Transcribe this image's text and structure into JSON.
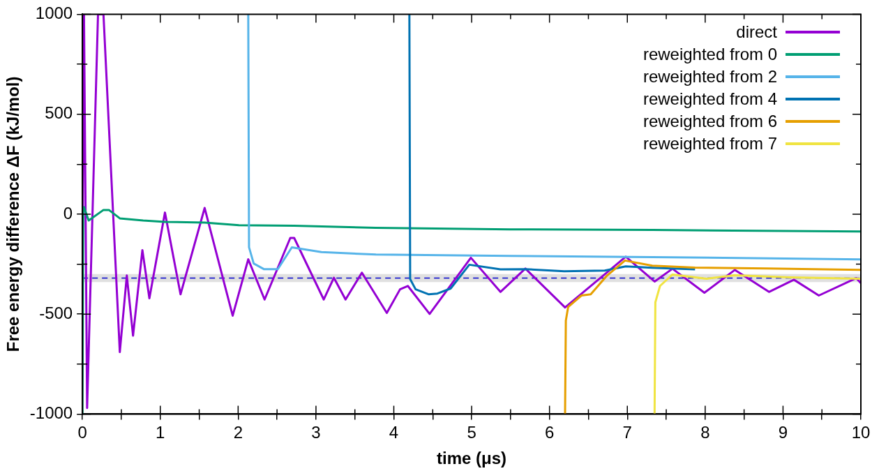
{
  "chart_data": {
    "type": "line",
    "xlabel": "time (μs)",
    "ylabel": "Free energy difference ΔF (kJ/mol)",
    "xlim": [
      0,
      10
    ],
    "ylim": [
      -1000,
      1000
    ],
    "xticks": [
      0,
      {
        "value": 0.5,
        "label": null
      },
      1,
      {
        "value": 1.5,
        "label": null
      },
      2,
      {
        "value": 2.5,
        "label": null
      },
      3,
      {
        "value": 3.5,
        "label": null
      },
      4,
      {
        "value": 4.5,
        "label": null
      },
      5,
      {
        "value": 5.5,
        "label": null
      },
      6,
      {
        "value": 6.5,
        "label": null
      },
      7,
      {
        "value": 7.5,
        "label": null
      },
      8,
      {
        "value": 8.5,
        "label": null
      },
      9,
      {
        "value": 9.5,
        "label": null
      },
      10
    ],
    "yticks": [
      -1000,
      {
        "value": -750,
        "label": null
      },
      -500,
      {
        "value": -250,
        "label": null
      },
      0,
      {
        "value": 250,
        "label": null
      },
      500,
      {
        "value": 750,
        "label": null
      },
      1000
    ],
    "grid": false,
    "legend": "top right",
    "marker": "none",
    "line_style": "solid",
    "ref_lines": [
      {
        "axis": "y",
        "value": -320,
        "color": "#0000cc",
        "line_style": "dashed"
      }
    ],
    "bands": [
      {
        "axis": "y",
        "from": -340,
        "to": -300,
        "color": "#e0e0e0"
      }
    ],
    "series": [
      {
        "name": "direct",
        "color": "#9400d3",
        "x": [
          0,
          0.02,
          0.06,
          0.2,
          0.27,
          0.48,
          0.57,
          0.65,
          0.77,
          0.86,
          1.06,
          1.26,
          1.57,
          1.93,
          2.13,
          2.34,
          2.67,
          2.72,
          3.1,
          3.23,
          3.38,
          3.59,
          3.66,
          3.91,
          4.08,
          4.18,
          4.46,
          4.99,
          5.37,
          5.69,
          6.2,
          6.98,
          7.35,
          7.58,
          7.99,
          8.38,
          8.82,
          9.14,
          9.46,
          9.94,
          10
        ],
        "values": [
          -300,
          1000,
          -970,
          1000,
          1000,
          -690,
          -307,
          -608,
          -180,
          -421,
          8,
          -401,
          31,
          -508,
          -226,
          -427,
          -119,
          -119,
          -427,
          -318,
          -427,
          -293,
          -337,
          -494,
          -376,
          -359,
          -499,
          -218,
          -389,
          -272,
          -467,
          -213,
          -337,
          -273,
          -393,
          -279,
          -389,
          -328,
          -407,
          -320,
          -345
        ]
      },
      {
        "name": "reweighted from 0",
        "color": "#009e73",
        "x": [
          0,
          0.01,
          0.02,
          0.08,
          0.27,
          0.34,
          0.48,
          0.78,
          1.06,
          1.57,
          2.01,
          2.72,
          3.77,
          5.49,
          7.32,
          10
        ],
        "values": [
          -1000,
          20,
          35,
          -32,
          21,
          21,
          -21,
          -32,
          -39,
          -42,
          -55,
          -58,
          -68,
          -76,
          -79,
          -87
        ]
      },
      {
        "name": "reweighted from 2",
        "color": "#56b4e9",
        "x": [
          2.13,
          2.14,
          2.2,
          2.33,
          2.51,
          2.69,
          3.07,
          3.77,
          5.49,
          7.32,
          10
        ],
        "values": [
          1000,
          -166,
          -247,
          -275,
          -275,
          -166,
          -190,
          -202,
          -209,
          -215,
          -226
        ]
      },
      {
        "name": "reweighted from 4",
        "color": "#0072b2",
        "x": [
          4.2,
          4.21,
          4.28,
          4.45,
          4.56,
          4.73,
          4.97,
          5.37,
          5.69,
          6.19,
          6.71,
          6.98,
          7.32,
          7.87
        ],
        "values": [
          1000,
          -325,
          -376,
          -401,
          -397,
          -372,
          -253,
          -276,
          -275,
          -286,
          -282,
          -261,
          -268,
          -276
        ]
      },
      {
        "name": "reweighted from 6",
        "color": "#e69f00",
        "x": [
          6.2,
          6.21,
          6.24,
          6.41,
          6.53,
          6.74,
          6.97,
          7.32,
          7.87,
          8.79,
          10
        ],
        "values": [
          -1000,
          -533,
          -464,
          -407,
          -401,
          -307,
          -232,
          -258,
          -267,
          -272,
          -279
        ]
      },
      {
        "name": "reweighted from 7",
        "color": "#f0e442",
        "x": [
          7.35,
          7.36,
          7.42,
          7.58,
          8.02,
          8.38,
          9.09,
          10
        ],
        "values": [
          -1000,
          -441,
          -359,
          -302,
          -323,
          -306,
          -316,
          -323
        ]
      }
    ]
  }
}
